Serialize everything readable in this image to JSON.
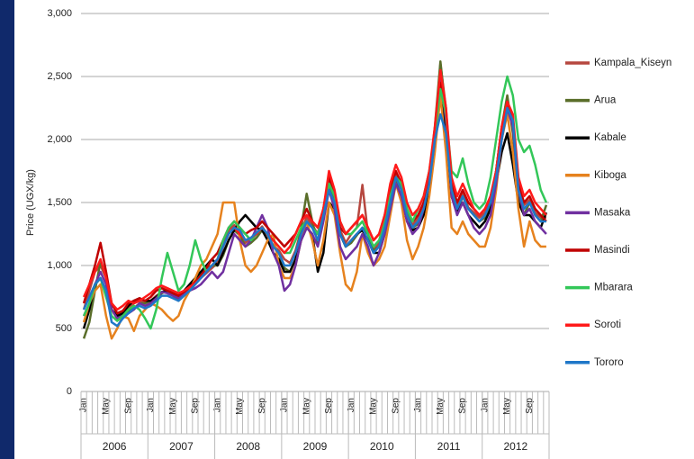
{
  "chart_data": {
    "type": "line",
    "y_label": "Price (UGX/kg)",
    "categories": [
      "Jan",
      null,
      null,
      null,
      "May",
      null,
      null,
      null,
      "Sep",
      null,
      null,
      null,
      "Jan",
      null,
      null,
      null,
      "May",
      null,
      null,
      null,
      "Sep",
      null,
      null,
      null,
      "Jan",
      null,
      null,
      null,
      "May",
      null,
      null,
      null,
      "Sep",
      null,
      null,
      null,
      "Jan",
      null,
      null,
      null,
      "May",
      null,
      null,
      null,
      "Sep",
      null,
      null,
      null,
      "Jan",
      null,
      null,
      null,
      "May",
      null,
      null,
      null,
      "Sep",
      null,
      null,
      null,
      "Jan",
      null,
      null,
      null,
      "May",
      null,
      null,
      null,
      "Sep",
      null,
      null,
      null,
      "Jan",
      null,
      null,
      null,
      "May",
      null,
      null,
      null,
      "Sep",
      null,
      null,
      null
    ],
    "x_groups": [
      "2006",
      "2007",
      "2008",
      "2009",
      "2010",
      "2011",
      "2012"
    ],
    "ylim": [
      0,
      3000
    ],
    "yticks": [
      0,
      500,
      {
        "value": 1000,
        "label": "1,000"
      },
      {
        "value": 1500,
        "label": "1,500"
      },
      {
        "value": 2000,
        "label": "2,000"
      },
      {
        "value": 2500,
        "label": "2,500"
      },
      {
        "value": 3000,
        "label": "3,000"
      }
    ],
    "grid": true,
    "legend": "right",
    "series": [
      {
        "name": "Kampala_Kiseyn",
        "color": "#b5473f",
        "values": [
          650,
          800,
          950,
          1000,
          900,
          700,
          620,
          640,
          660,
          700,
          720,
          700,
          720,
          760,
          790,
          800,
          780,
          740,
          780,
          820,
          860,
          900,
          940,
          980,
          1020,
          1150,
          1280,
          1320,
          1260,
          1180,
          1220,
          1260,
          1310,
          1240,
          1160,
          1120,
          1050,
          1020,
          1120,
          1280,
          1380,
          1320,
          1250,
          1450,
          1700,
          1520,
          1280,
          1180,
          1250,
          1300,
          1640,
          1250,
          1120,
          1180,
          1320,
          1520,
          1720,
          1620,
          1420,
          1320,
          1380,
          1480,
          1700,
          2050,
          2600,
          2250,
          1620,
          1480,
          1580,
          1460,
          1420,
          1380,
          1420,
          1520,
          1750,
          2050,
          2300,
          2150,
          1620,
          1480,
          1520,
          1420,
          1380,
          1380
        ]
      },
      {
        "name": "Arua",
        "color": "#5a6e2a",
        "values": [
          420,
          550,
          800,
          1030,
          900,
          650,
          580,
          600,
          640,
          660,
          700,
          700,
          720,
          740,
          780,
          800,
          760,
          720,
          760,
          800,
          880,
          950,
          980,
          1000,
          1000,
          1080,
          1200,
          1280,
          1240,
          1150,
          1180,
          1220,
          1280,
          1250,
          1150,
          1100,
          980,
          950,
          1050,
          1300,
          1570,
          1350,
          1180,
          1380,
          1650,
          1520,
          1250,
          1150,
          1180,
          1240,
          1300,
          1250,
          1120,
          1150,
          1300,
          1480,
          1680,
          1600,
          1400,
          1300,
          1330,
          1430,
          1700,
          2100,
          2620,
          2200,
          1550,
          1420,
          1550,
          1450,
          1400,
          1350,
          1380,
          1480,
          1750,
          2100,
          2350,
          2050,
          1550,
          1400,
          1500,
          1400,
          1350,
          1480
        ]
      },
      {
        "name": "Kabale",
        "color": "#000000",
        "values": [
          500,
          650,
          850,
          900,
          800,
          650,
          600,
          620,
          680,
          720,
          740,
          720,
          720,
          750,
          790,
          800,
          780,
          760,
          800,
          850,
          900,
          950,
          1000,
          1050,
          1000,
          1100,
          1200,
          1280,
          1350,
          1400,
          1350,
          1300,
          1280,
          1200,
          1100,
          1050,
          950,
          950,
          1050,
          1200,
          1300,
          1250,
          950,
          1100,
          1500,
          1450,
          1250,
          1150,
          1200,
          1250,
          1280,
          1200,
          1100,
          1100,
          1250,
          1450,
          1650,
          1550,
          1350,
          1280,
          1300,
          1400,
          1600,
          1950,
          2400,
          2050,
          1550,
          1420,
          1500,
          1400,
          1350,
          1300,
          1350,
          1450,
          1650,
          1900,
          2050,
          1800,
          1500,
          1400,
          1400,
          1350,
          1300,
          1420
        ]
      },
      {
        "name": "Kiboga",
        "color": "#e6821e",
        "values": [
          550,
          700,
          800,
          850,
          600,
          420,
          500,
          600,
          580,
          480,
          600,
          650,
          700,
          680,
          650,
          600,
          560,
          600,
          720,
          800,
          900,
          1000,
          1050,
          1150,
          1250,
          1500,
          1500,
          1500,
          1200,
          1000,
          950,
          1000,
          1100,
          1200,
          1250,
          1000,
          900,
          900,
          1000,
          1200,
          1350,
          1200,
          1000,
          1200,
          1500,
          1400,
          1100,
          850,
          800,
          950,
          1250,
          1100,
          1000,
          1050,
          1150,
          1400,
          1650,
          1500,
          1200,
          1050,
          1150,
          1300,
          1550,
          1900,
          2350,
          1900,
          1300,
          1250,
          1350,
          1250,
          1200,
          1150,
          1150,
          1300,
          1600,
          2000,
          2200,
          1900,
          1450,
          1150,
          1350,
          1200,
          1150,
          1150
        ]
      },
      {
        "name": "Masaka",
        "color": "#7030a0",
        "values": [
          600,
          700,
          850,
          950,
          850,
          650,
          580,
          600,
          620,
          650,
          700,
          680,
          700,
          740,
          790,
          780,
          760,
          740,
          770,
          800,
          820,
          850,
          900,
          950,
          900,
          950,
          1100,
          1250,
          1200,
          1150,
          1200,
          1300,
          1400,
          1300,
          1100,
          1000,
          800,
          850,
          1000,
          1200,
          1300,
          1250,
          1150,
          1350,
          1600,
          1450,
          1150,
          1050,
          1100,
          1150,
          1250,
          1150,
          1000,
          1100,
          1250,
          1450,
          1650,
          1550,
          1350,
          1250,
          1300,
          1450,
          1650,
          2000,
          2500,
          2150,
          1550,
          1400,
          1500,
          1400,
          1300,
          1250,
          1300,
          1400,
          1650,
          2000,
          2250,
          2100,
          1600,
          1400,
          1450,
          1350,
          1300,
          1250
        ]
      },
      {
        "name": "Masindi",
        "color": "#c00000",
        "values": [
          700,
          850,
          1000,
          1180,
          950,
          700,
          620,
          640,
          700,
          720,
          740,
          720,
          750,
          800,
          820,
          800,
          780,
          760,
          790,
          830,
          870,
          920,
          980,
          1050,
          1100,
          1200,
          1300,
          1350,
          1300,
          1250,
          1280,
          1300,
          1350,
          1300,
          1250,
          1200,
          1150,
          1200,
          1250,
          1350,
          1450,
          1350,
          1300,
          1450,
          1700,
          1550,
          1300,
          1250,
          1300,
          1350,
          1400,
          1300,
          1200,
          1250,
          1400,
          1600,
          1750,
          1650,
          1450,
          1350,
          1400,
          1500,
          1700,
          2050,
          2450,
          2200,
          1650,
          1500,
          1600,
          1500,
          1450,
          1400,
          1450,
          1550,
          1750,
          2100,
          2300,
          2150,
          1650,
          1500,
          1550,
          1450,
          1400,
          1350
        ]
      },
      {
        "name": "Mbarara",
        "color": "#33c759",
        "values": [
          600,
          700,
          850,
          900,
          750,
          600,
          560,
          600,
          650,
          680,
          650,
          580,
          500,
          650,
          900,
          1100,
          950,
          800,
          850,
          1000,
          1200,
          1050,
          950,
          1000,
          1050,
          1200,
          1300,
          1350,
          1300,
          1250,
          1200,
          1250,
          1300,
          1250,
          1200,
          1150,
          1100,
          1100,
          1200,
          1300,
          1350,
          1300,
          1250,
          1400,
          1650,
          1550,
          1350,
          1250,
          1250,
          1300,
          1350,
          1250,
          1150,
          1200,
          1350,
          1550,
          1700,
          1650,
          1450,
          1350,
          1450,
          1550,
          1750,
          2050,
          2400,
          2200,
          1750,
          1700,
          1850,
          1650,
          1500,
          1450,
          1500,
          1700,
          2000,
          2300,
          2500,
          2350,
          2000,
          1900,
          1950,
          1800,
          1600,
          1500
        ]
      },
      {
        "name": "Soroti",
        "color": "#ff1a1a",
        "values": [
          750,
          850,
          950,
          1050,
          900,
          700,
          650,
          680,
          720,
          700,
          720,
          750,
          780,
          820,
          840,
          820,
          800,
          780,
          800,
          830,
          860,
          900,
          950,
          1000,
          1050,
          1150,
          1250,
          1300,
          1250,
          1200,
          1220,
          1250,
          1300,
          1250,
          1200,
          1150,
          1100,
          1150,
          1250,
          1350,
          1400,
          1350,
          1300,
          1450,
          1750,
          1600,
          1350,
          1250,
          1300,
          1350,
          1400,
          1300,
          1200,
          1250,
          1400,
          1650,
          1800,
          1700,
          1500,
          1400,
          1450,
          1550,
          1750,
          2100,
          2550,
          2250,
          1700,
          1550,
          1650,
          1550,
          1450,
          1400,
          1450,
          1550,
          1750,
          2100,
          2300,
          2200,
          1700,
          1550,
          1600,
          1500,
          1450,
          1400
        ]
      },
      {
        "name": "Tororo",
        "color": "#1f77c8",
        "values": [
          650,
          750,
          850,
          900,
          800,
          550,
          520,
          580,
          620,
          660,
          680,
          660,
          680,
          720,
          760,
          760,
          740,
          720,
          760,
          800,
          850,
          900,
          950,
          1000,
          1050,
          1150,
          1250,
          1300,
          1280,
          1200,
          1220,
          1260,
          1300,
          1250,
          1150,
          1100,
          1000,
          1000,
          1100,
          1250,
          1350,
          1300,
          1200,
          1400,
          1600,
          1500,
          1250,
          1150,
          1200,
          1250,
          1300,
          1200,
          1100,
          1150,
          1300,
          1500,
          1700,
          1600,
          1400,
          1300,
          1350,
          1450,
          1650,
          2000,
          2200,
          2050,
          1600,
          1450,
          1550,
          1450,
          1400,
          1350,
          1400,
          1500,
          1700,
          2000,
          2250,
          2150,
          1600,
          1450,
          1500,
          1400,
          1350,
          1350
        ]
      }
    ]
  }
}
